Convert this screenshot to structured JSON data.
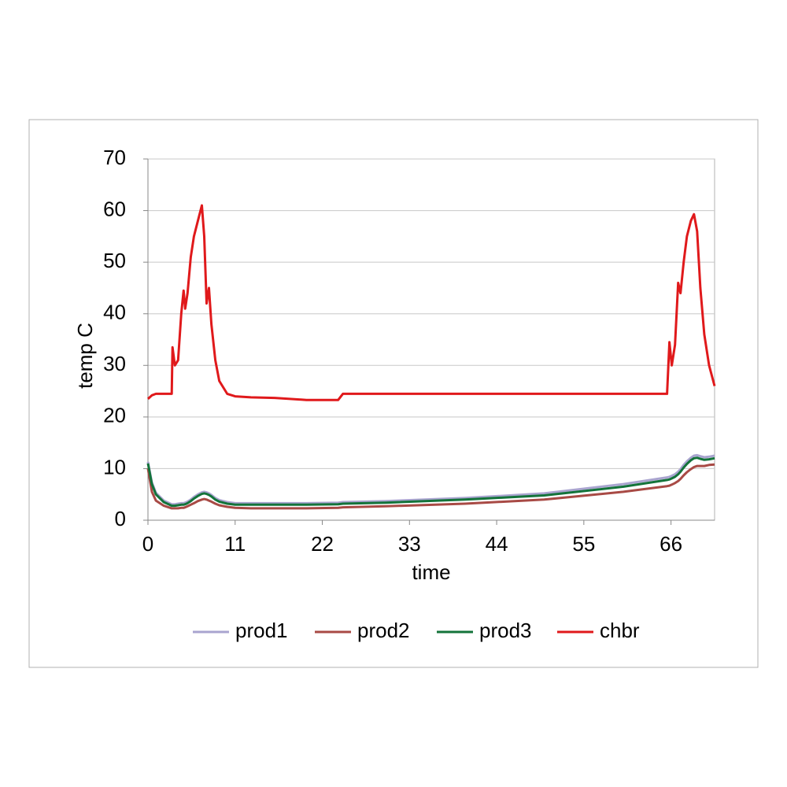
{
  "chart_data": {
    "type": "line",
    "x_label": "time",
    "y_label": "temp C",
    "x": [
      0,
      0.5,
      1,
      2,
      3,
      3.1,
      3.4,
      3.8,
      4.2,
      4.5,
      4.7,
      5,
      5.4,
      5.8,
      6.3,
      6.8,
      7.1,
      7.4,
      7.7,
      8,
      8.5,
      9,
      10,
      11,
      13,
      16,
      20,
      24,
      24.6,
      30,
      40,
      50,
      60,
      65.5,
      65.8,
      66.1,
      66.5,
      66.9,
      67.2,
      67.6,
      68,
      68.5,
      68.9,
      69.3,
      69.7,
      70.2,
      70.8,
      71.5
    ],
    "series": [
      {
        "name": "prod1",
        "color": "#a9a4cf",
        "values": [
          11.3,
          7.3,
          5.3,
          3.8,
          3.1,
          3.1,
          3.1,
          3.2,
          3.3,
          3.3,
          3.4,
          3.6,
          4,
          4.5,
          5,
          5.4,
          5.5,
          5.4,
          5.2,
          4.9,
          4.3,
          3.9,
          3.5,
          3.3,
          3.3,
          3.3,
          3.3,
          3.4,
          3.5,
          3.7,
          4.3,
          5.2,
          7,
          8.3,
          8.4,
          8.6,
          8.9,
          9.4,
          9.9,
          10.7,
          11.4,
          12.1,
          12.5,
          12.6,
          12.4,
          12.2,
          12.3,
          12.5
        ]
      },
      {
        "name": "prod2",
        "color": "#a84a45",
        "values": [
          10,
          5.5,
          3.8,
          2.8,
          2.3,
          2.3,
          2.3,
          2.3,
          2.4,
          2.4,
          2.5,
          2.7,
          3,
          3.3,
          3.7,
          4,
          4.1,
          4,
          3.8,
          3.6,
          3.2,
          2.9,
          2.6,
          2.4,
          2.3,
          2.3,
          2.3,
          2.4,
          2.5,
          2.7,
          3.2,
          4,
          5.5,
          6.6,
          6.7,
          6.9,
          7.2,
          7.6,
          8,
          8.7,
          9.3,
          9.9,
          10.3,
          10.5,
          10.5,
          10.5,
          10.7,
          10.8
        ]
      },
      {
        "name": "prod3",
        "color": "#13733a",
        "values": [
          11,
          7,
          5,
          3.5,
          2.8,
          2.8,
          2.8,
          2.9,
          3,
          3,
          3.1,
          3.3,
          3.7,
          4.2,
          4.7,
          5.1,
          5.2,
          5.1,
          4.9,
          4.6,
          4,
          3.6,
          3.2,
          3,
          3,
          3,
          3,
          3.1,
          3.2,
          3.4,
          4,
          4.8,
          6.5,
          7.8,
          7.9,
          8.1,
          8.4,
          8.9,
          9.4,
          10.2,
          10.9,
          11.6,
          12,
          12.1,
          11.9,
          11.7,
          11.8,
          12
        ]
      },
      {
        "name": "chbr",
        "color": "#e0191b",
        "values": [
          23.5,
          24.2,
          24.5,
          24.5,
          24.5,
          33.5,
          30,
          31,
          40,
          44.5,
          41,
          44,
          51,
          55,
          58,
          61,
          55,
          42,
          45,
          38,
          31,
          27,
          24.5,
          24,
          23.8,
          23.7,
          23.3,
          23.3,
          24.5,
          24.5,
          24.5,
          24.5,
          24.5,
          24.5,
          34.5,
          30,
          34,
          46,
          44,
          50,
          55,
          58,
          59.3,
          56,
          45,
          36,
          30,
          26
        ]
      }
    ],
    "xlim": [
      0,
      71.5
    ],
    "xticks": [
      0,
      11,
      22,
      33,
      44,
      55,
      66
    ],
    "ylim": [
      0,
      70
    ],
    "yticks": [
      0,
      10,
      20,
      30,
      40,
      50,
      60,
      70
    ],
    "grid": true,
    "legend": "bottom"
  }
}
